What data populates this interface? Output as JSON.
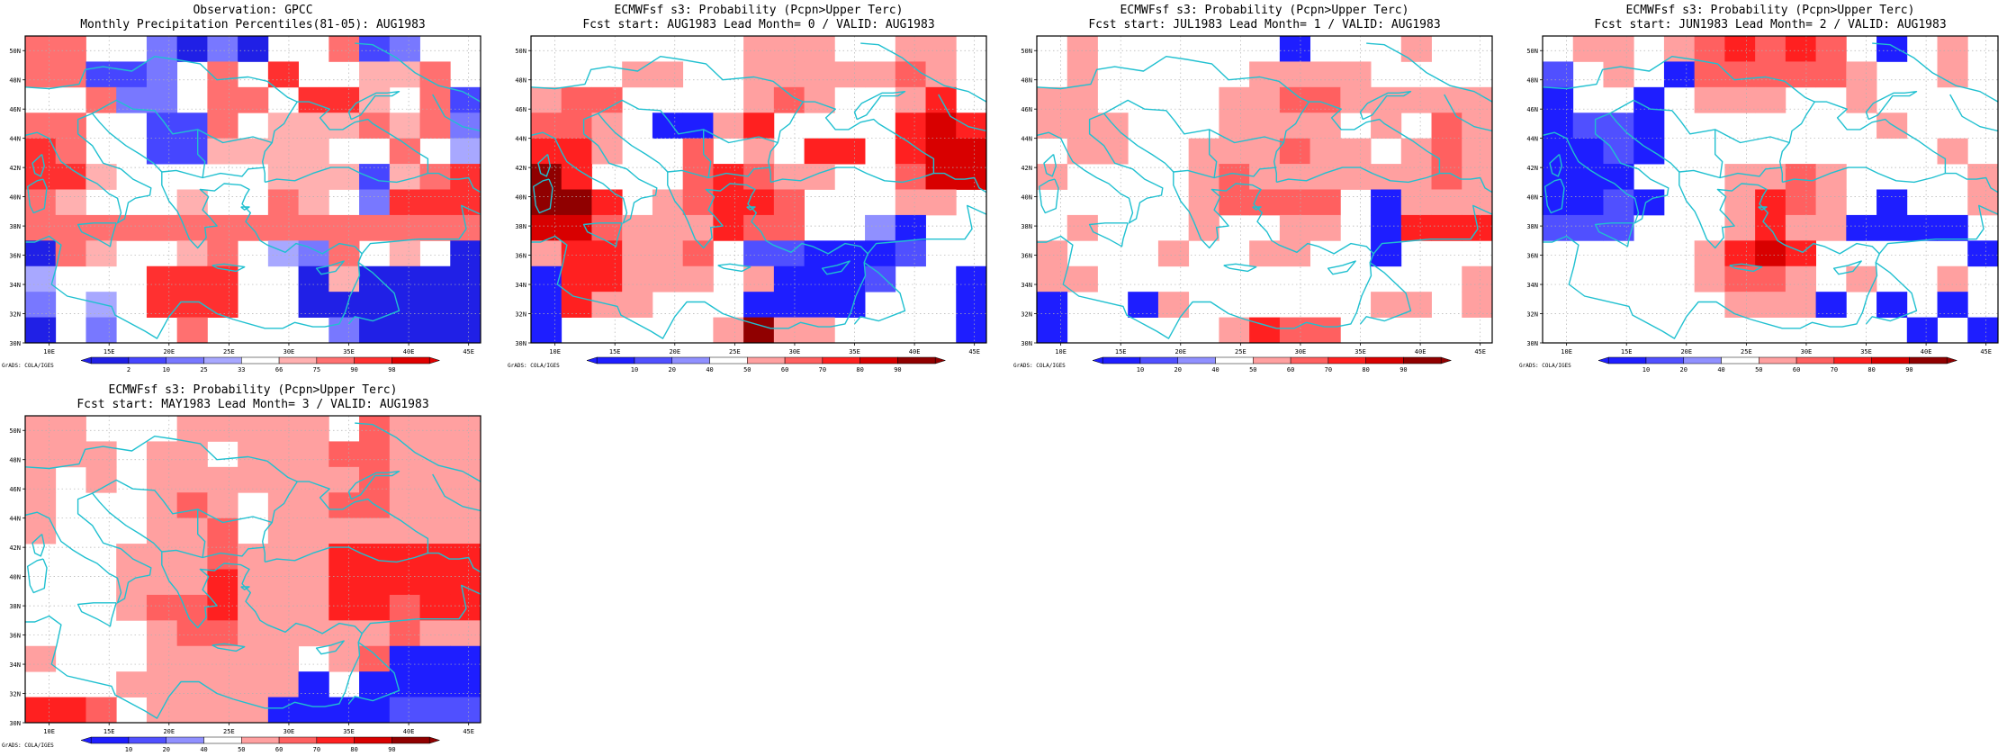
{
  "colors": {
    "obs": [
      "#2020e6",
      "#4646ff",
      "#7878ff",
      "#a8a8ff",
      "#ffffff",
      "#ffb0b0",
      "#ff7070",
      "#ff3030",
      "#e00000"
    ],
    "fcst": [
      "#1e1eff",
      "#5050ff",
      "#9090ff",
      "#ffffff",
      "#ffa0a0",
      "#ff6060",
      "#ff2020",
      "#d80000",
      "#900000"
    ],
    "coast": "#20c0d0",
    "grid": "#b0b0b0"
  },
  "credit": "GrADS: COLA/IGES",
  "axes": {
    "lon_labels": [
      "10E",
      "15E",
      "20E",
      "25E",
      "30E",
      "35E",
      "40E",
      "45E"
    ],
    "lat_labels": [
      "30N",
      "32N",
      "34N",
      "36N",
      "38N",
      "40N",
      "42N",
      "44N",
      "46N",
      "48N",
      "50N"
    ],
    "xlim": [
      8,
      46
    ],
    "ylim": [
      30,
      51
    ]
  },
  "chart_data": [
    {
      "type": "heatmap",
      "title": "Observation: GPCC",
      "subtitle": "Monthly Precipitation Percentiles(81-05): AUG1983",
      "palette": "obs",
      "colorbar_labels": [
        "2",
        "10",
        "25",
        "33",
        "66",
        "75",
        "90",
        "98"
      ],
      "grid": [
        [
          6,
          6,
          4,
          4,
          2,
          0,
          2,
          0,
          4,
          4,
          6,
          1,
          2,
          4,
          4
        ],
        [
          6,
          6,
          1,
          1,
          2,
          4,
          6,
          4,
          7,
          4,
          4,
          5,
          5,
          6,
          4
        ],
        [
          4,
          4,
          6,
          2,
          2,
          4,
          6,
          6,
          4,
          7,
          7,
          5,
          4,
          6,
          1
        ],
        [
          6,
          6,
          4,
          4,
          1,
          1,
          6,
          4,
          5,
          5,
          5,
          6,
          5,
          6,
          2
        ],
        [
          7,
          6,
          4,
          4,
          1,
          1,
          5,
          5,
          5,
          5,
          4,
          4,
          6,
          4,
          3
        ],
        [
          7,
          7,
          5,
          4,
          4,
          4,
          4,
          4,
          5,
          5,
          5,
          1,
          5,
          6,
          7
        ],
        [
          6,
          5,
          4,
          4,
          4,
          5,
          4,
          4,
          6,
          5,
          4,
          2,
          7,
          7,
          7
        ],
        [
          6,
          6,
          6,
          6,
          6,
          6,
          6,
          6,
          6,
          6,
          6,
          6,
          6,
          6,
          6
        ],
        [
          0,
          6,
          5,
          4,
          4,
          5,
          6,
          4,
          3,
          2,
          6,
          4,
          5,
          4,
          0
        ],
        [
          3,
          4,
          4,
          4,
          7,
          7,
          7,
          4,
          4,
          0,
          5,
          0,
          0,
          0,
          0
        ],
        [
          2,
          4,
          3,
          4,
          7,
          7,
          7,
          4,
          4,
          0,
          0,
          0,
          0,
          0,
          0
        ],
        [
          0,
          4,
          2,
          4,
          4,
          6,
          4,
          4,
          4,
          4,
          2,
          0,
          0,
          0,
          0
        ]
      ]
    },
    {
      "type": "heatmap",
      "title": "ECMWFsf s3: Probability (Pcpn>Upper Terc)",
      "subtitle": "Fcst start: AUG1983  Lead Month= 0 / VALID: AUG1983",
      "palette": "fcst",
      "colorbar_labels": [
        "10",
        "20",
        "40",
        "50",
        "60",
        "70",
        "80",
        "90"
      ],
      "grid": [
        [
          3,
          3,
          3,
          3,
          3,
          3,
          3,
          4,
          4,
          4,
          3,
          3,
          4,
          4,
          3
        ],
        [
          3,
          3,
          3,
          4,
          4,
          3,
          3,
          4,
          4,
          4,
          4,
          4,
          5,
          4,
          3
        ],
        [
          4,
          5,
          5,
          3,
          3,
          3,
          3,
          4,
          5,
          4,
          3,
          3,
          4,
          6,
          3
        ],
        [
          5,
          5,
          4,
          3,
          0,
          0,
          4,
          6,
          3,
          3,
          3,
          3,
          6,
          7,
          6
        ],
        [
          6,
          6,
          4,
          3,
          3,
          5,
          3,
          4,
          3,
          6,
          6,
          3,
          6,
          7,
          7
        ],
        [
          8,
          6,
          3,
          3,
          3,
          5,
          6,
          5,
          4,
          4,
          3,
          3,
          5,
          7,
          7
        ],
        [
          8,
          8,
          6,
          3,
          4,
          5,
          6,
          6,
          5,
          3,
          3,
          3,
          4,
          4,
          3
        ],
        [
          7,
          7,
          5,
          4,
          4,
          4,
          6,
          5,
          5,
          3,
          3,
          2,
          0,
          3,
          3
        ],
        [
          4,
          6,
          6,
          4,
          4,
          5,
          3,
          1,
          1,
          0,
          0,
          0,
          1,
          3,
          3
        ],
        [
          0,
          6,
          6,
          4,
          4,
          4,
          3,
          4,
          0,
          0,
          0,
          1,
          3,
          3,
          0
        ],
        [
          0,
          6,
          4,
          4,
          3,
          3,
          3,
          0,
          0,
          0,
          0,
          3,
          3,
          3,
          0
        ],
        [
          0,
          3,
          3,
          3,
          3,
          3,
          4,
          8,
          4,
          4,
          3,
          3,
          3,
          3,
          0
        ]
      ]
    },
    {
      "type": "heatmap",
      "title": "ECMWFsf s3: Probability (Pcpn>Upper Terc)",
      "subtitle": "Fcst start: JUL1983  Lead Month= 1 / VALID: AUG1983",
      "palette": "fcst",
      "colorbar_labels": [
        "10",
        "20",
        "40",
        "50",
        "60",
        "70",
        "80",
        "90"
      ],
      "grid": [
        [
          3,
          4,
          3,
          3,
          3,
          3,
          3,
          3,
          0,
          3,
          3,
          3,
          4,
          3,
          3
        ],
        [
          3,
          4,
          3,
          3,
          3,
          3,
          3,
          4,
          4,
          4,
          4,
          3,
          3,
          3,
          3
        ],
        [
          4,
          4,
          3,
          3,
          3,
          3,
          4,
          4,
          5,
          5,
          4,
          4,
          4,
          4,
          4
        ],
        [
          4,
          4,
          4,
          3,
          3,
          3,
          4,
          4,
          4,
          4,
          3,
          4,
          3,
          5,
          4
        ],
        [
          3,
          4,
          4,
          3,
          3,
          4,
          4,
          4,
          5,
          4,
          4,
          3,
          4,
          5,
          4
        ],
        [
          4,
          3,
          3,
          3,
          3,
          4,
          5,
          4,
          4,
          4,
          4,
          4,
          4,
          5,
          4
        ],
        [
          3,
          3,
          3,
          3,
          3,
          4,
          5,
          5,
          5,
          5,
          3,
          0,
          4,
          4,
          4
        ],
        [
          3,
          4,
          3,
          3,
          3,
          4,
          3,
          3,
          4,
          4,
          3,
          0,
          6,
          6,
          6
        ],
        [
          4,
          3,
          3,
          3,
          4,
          3,
          3,
          4,
          4,
          3,
          3,
          0,
          3,
          3,
          3
        ],
        [
          4,
          4,
          3,
          3,
          3,
          3,
          3,
          3,
          3,
          3,
          3,
          3,
          3,
          3,
          4
        ],
        [
          0,
          3,
          3,
          0,
          4,
          3,
          3,
          3,
          3,
          3,
          3,
          4,
          4,
          3,
          4
        ],
        [
          0,
          3,
          3,
          3,
          3,
          3,
          4,
          6,
          5,
          5,
          3,
          3,
          3,
          3,
          3
        ]
      ]
    },
    {
      "type": "heatmap",
      "title": "ECMWFsf s3: Probability (Pcpn>Upper Terc)",
      "subtitle": "Fcst start: JUN1983  Lead Month= 2 / VALID: AUG1983",
      "palette": "fcst",
      "colorbar_labels": [
        "10",
        "20",
        "40",
        "50",
        "60",
        "70",
        "80",
        "90"
      ],
      "grid": [
        [
          3,
          4,
          4,
          3,
          4,
          5,
          6,
          5,
          6,
          5,
          3,
          0,
          3,
          4,
          3
        ],
        [
          1,
          3,
          4,
          3,
          0,
          5,
          5,
          5,
          5,
          5,
          4,
          3,
          3,
          4,
          3
        ],
        [
          0,
          3,
          3,
          0,
          3,
          4,
          4,
          4,
          3,
          3,
          4,
          3,
          3,
          3,
          3
        ],
        [
          0,
          1,
          1,
          0,
          3,
          3,
          3,
          3,
          3,
          3,
          3,
          4,
          3,
          3,
          3
        ],
        [
          0,
          0,
          1,
          0,
          3,
          3,
          3,
          3,
          3,
          3,
          3,
          3,
          3,
          4,
          3
        ],
        [
          0,
          0,
          0,
          3,
          3,
          3,
          4,
          4,
          5,
          4,
          3,
          3,
          3,
          3,
          4
        ],
        [
          0,
          0,
          1,
          0,
          3,
          3,
          4,
          6,
          5,
          4,
          3,
          0,
          3,
          3,
          4
        ],
        [
          1,
          1,
          1,
          3,
          3,
          3,
          4,
          6,
          4,
          4,
          0,
          0,
          0,
          0,
          3
        ],
        [
          3,
          3,
          3,
          3,
          3,
          4,
          6,
          7,
          6,
          3,
          3,
          3,
          3,
          3,
          0
        ],
        [
          3,
          3,
          3,
          3,
          3,
          4,
          5,
          5,
          4,
          3,
          4,
          3,
          3,
          4,
          3
        ],
        [
          3,
          3,
          3,
          3,
          3,
          3,
          4,
          4,
          4,
          0,
          3,
          0,
          3,
          0,
          3
        ],
        [
          3,
          3,
          3,
          3,
          3,
          3,
          3,
          3,
          3,
          3,
          3,
          3,
          0,
          3,
          0
        ]
      ]
    },
    {
      "type": "heatmap",
      "title": "ECMWFsf s3: Probability (Pcpn>Upper Terc)",
      "subtitle": "Fcst start: MAY1983  Lead Month= 3 / VALID: AUG1983",
      "palette": "fcst",
      "colorbar_labels": [
        "10",
        "20",
        "40",
        "50",
        "60",
        "70",
        "80",
        "90"
      ],
      "grid": [
        [
          4,
          4,
          3,
          3,
          3,
          4,
          4,
          4,
          4,
          4,
          3,
          5,
          4,
          4,
          4
        ],
        [
          4,
          4,
          4,
          3,
          4,
          4,
          3,
          4,
          4,
          4,
          5,
          5,
          4,
          4,
          4
        ],
        [
          4,
          3,
          4,
          3,
          4,
          4,
          4,
          4,
          4,
          4,
          4,
          5,
          4,
          4,
          4
        ],
        [
          4,
          3,
          3,
          3,
          4,
          5,
          4,
          3,
          4,
          4,
          5,
          5,
          4,
          4,
          4
        ],
        [
          4,
          3,
          3,
          3,
          4,
          4,
          5,
          3,
          4,
          4,
          4,
          4,
          4,
          4,
          4
        ],
        [
          3,
          3,
          3,
          4,
          4,
          4,
          5,
          4,
          4,
          4,
          6,
          6,
          6,
          6,
          6
        ],
        [
          3,
          3,
          3,
          4,
          4,
          4,
          6,
          4,
          4,
          4,
          6,
          6,
          6,
          6,
          6
        ],
        [
          3,
          3,
          3,
          4,
          5,
          5,
          6,
          4,
          4,
          4,
          6,
          6,
          5,
          6,
          6
        ],
        [
          3,
          3,
          3,
          3,
          4,
          5,
          5,
          4,
          4,
          4,
          4,
          4,
          5,
          4,
          4
        ],
        [
          4,
          3,
          3,
          3,
          4,
          4,
          4,
          4,
          4,
          3,
          4,
          5,
          0,
          0,
          0
        ],
        [
          3,
          3,
          3,
          4,
          4,
          4,
          4,
          4,
          4,
          0,
          3,
          0,
          0,
          0,
          0
        ],
        [
          6,
          6,
          5,
          3,
          4,
          4,
          4,
          4,
          0,
          0,
          0,
          0,
          1,
          1,
          1
        ]
      ]
    }
  ]
}
